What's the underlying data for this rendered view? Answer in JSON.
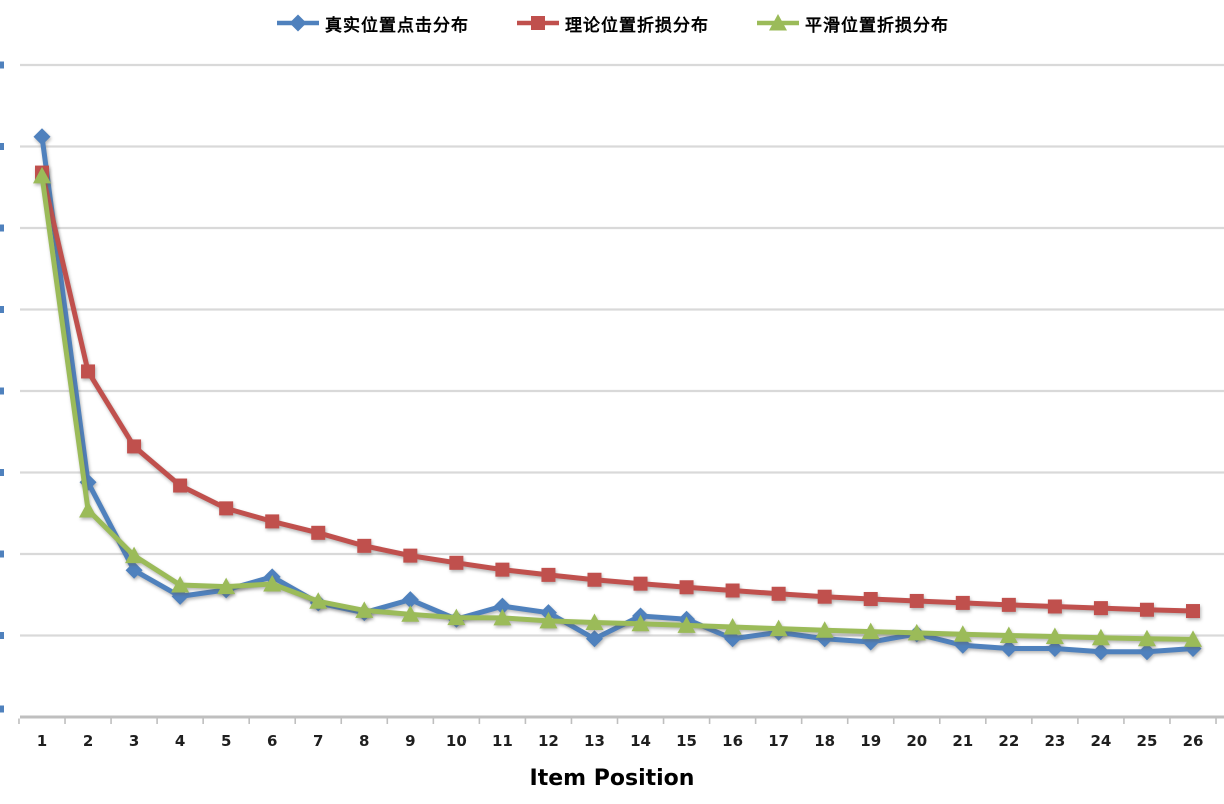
{
  "chart_data": {
    "type": "line",
    "title": "",
    "xlabel": "Item Position",
    "ylabel": "",
    "categories": [
      1,
      2,
      3,
      4,
      5,
      6,
      7,
      8,
      9,
      10,
      11,
      12,
      13,
      14,
      15,
      16,
      17,
      18,
      19,
      20,
      21,
      22,
      23,
      24,
      25,
      26
    ],
    "ylim": [
      0,
      0.2
    ],
    "y_gridline_step": 0.025,
    "y_tick_labels_visible": false,
    "grid": true,
    "legend_position": "top-center",
    "series": [
      {
        "name": "真实位置点击分布",
        "color": "#4f81bd",
        "marker": "diamond",
        "values": [
          0.178,
          0.072,
          0.045,
          0.037,
          0.039,
          0.043,
          0.035,
          0.032,
          0.036,
          0.03,
          0.034,
          0.032,
          0.024,
          0.031,
          0.03,
          0.024,
          0.026,
          0.024,
          0.023,
          0.0255,
          0.022,
          0.021,
          0.021,
          0.02,
          0.02,
          0.021
        ]
      },
      {
        "name": "理论位置折损分布",
        "color": "#c0504d",
        "marker": "square",
        "values": [
          0.167,
          0.106,
          0.083,
          0.071,
          0.064,
          0.06,
          0.0565,
          0.0525,
          0.0495,
          0.0473,
          0.0452,
          0.0436,
          0.0421,
          0.0409,
          0.0398,
          0.0388,
          0.0378,
          0.0369,
          0.0362,
          0.0356,
          0.035,
          0.0344,
          0.0339,
          0.0334,
          0.0329,
          0.0325
        ]
      },
      {
        "name": "平滑位置折损分布",
        "color": "#9bbb59",
        "marker": "triangle",
        "values": [
          0.166,
          0.0635,
          0.0495,
          0.0405,
          0.04,
          0.0408,
          0.0355,
          0.0327,
          0.0315,
          0.0305,
          0.0304,
          0.0295,
          0.029,
          0.0286,
          0.0281,
          0.0276,
          0.0271,
          0.0266,
          0.0262,
          0.0258,
          0.0254,
          0.025,
          0.0247,
          0.0243,
          0.024,
          0.0238
        ]
      }
    ],
    "palette": {
      "gridline": "#d9d9d9",
      "axis_line": "#bfbfbf",
      "x_tick_label": "#1f1f1f",
      "y_label_remnant": "#4f81bd",
      "background": "#ffffff"
    }
  }
}
